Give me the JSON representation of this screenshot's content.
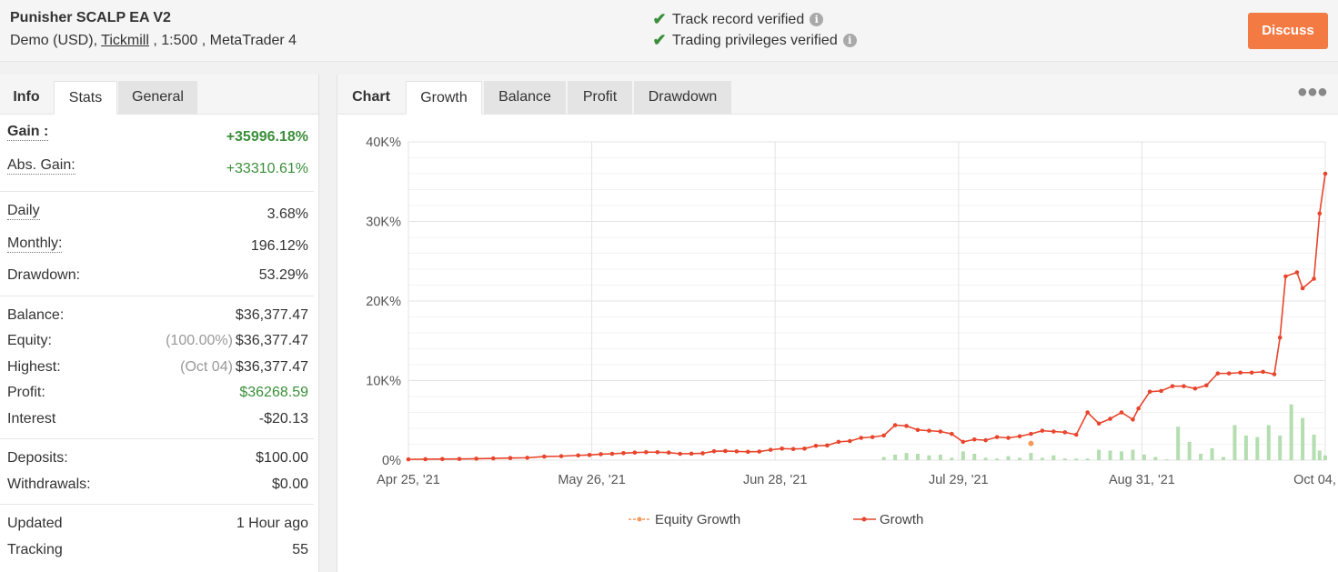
{
  "header": {
    "system_name": "Punisher SCALP EA V2",
    "account_type": "Demo (USD),",
    "broker": "Tickmill",
    "leverage_platform": ", 1:500 , MetaTrader 4",
    "track_record": "Track record verified",
    "trading_privileges": "Trading privileges verified",
    "discuss_label": "Discuss"
  },
  "left_tabs": [
    "Info",
    "Stats",
    "General"
  ],
  "stats": {
    "gain": {
      "label": "Gain :",
      "value": "+35996.18%"
    },
    "abs_gain": {
      "label": "Abs. Gain:",
      "value": "+33310.61%"
    },
    "daily": {
      "label": "Daily",
      "value": "3.68%"
    },
    "monthly": {
      "label": "Monthly:",
      "value": "196.12%"
    },
    "drawdown": {
      "label": "Drawdown:",
      "value": "53.29%"
    },
    "balance": {
      "label": "Balance:",
      "value": "$36,377.47"
    },
    "equity": {
      "label": "Equity:",
      "prefix": "(100.00%)",
      "value": "$36,377.47"
    },
    "highest": {
      "label": "Highest:",
      "prefix": "(Oct 04)",
      "value": "$36,377.47"
    },
    "profit": {
      "label": "Profit:",
      "value": "$36268.59"
    },
    "interest": {
      "label": "Interest",
      "value": "-$20.13"
    },
    "deposits": {
      "label": "Deposits:",
      "value": "$100.00"
    },
    "withdrawals": {
      "label": "Withdrawals:",
      "value": "$0.00"
    },
    "updated": {
      "label": "Updated",
      "value": "1 Hour ago"
    },
    "tracking": {
      "label": "Tracking",
      "value": "55"
    }
  },
  "chart_tabs": [
    "Chart",
    "Growth",
    "Balance",
    "Profit",
    "Drawdown"
  ],
  "menu_icon": "more-dots-icon",
  "colors": {
    "growth": "#e8452c",
    "equity": "#f39a5c",
    "bars": "#b4ddb0",
    "accent": "#f47a44",
    "green": "#3a8f3a"
  },
  "chart_data": {
    "type": "line",
    "ylim": [
      0,
      40000
    ],
    "yticks": [
      "0%",
      "10K%",
      "20K%",
      "30K%",
      "40K%"
    ],
    "xticks": [
      "Apr 25, '21",
      "May 26, '21",
      "Jun 28, '21",
      "Jul 29, '21",
      "Aug 31, '21",
      "Oct 04, '21"
    ],
    "x_range_days": [
      0,
      162
    ],
    "legend": [
      "Equity Growth",
      "Growth"
    ],
    "series": [
      {
        "name": "Growth",
        "x": [
          0,
          3,
          6,
          9,
          12,
          15,
          18,
          21,
          24,
          27,
          30,
          32,
          34,
          36,
          38,
          40,
          42,
          44,
          46,
          48,
          50,
          52,
          54,
          56,
          58,
          60,
          62,
          64,
          66,
          68,
          70,
          72,
          74,
          76,
          78,
          80,
          82,
          84,
          86,
          88,
          90,
          92,
          94,
          96,
          98,
          100,
          102,
          104,
          106,
          108,
          110,
          112,
          114,
          116,
          118,
          120,
          122,
          124,
          126,
          128,
          129,
          131,
          133,
          135,
          137,
          139,
          141,
          143,
          145,
          147,
          149,
          151,
          153,
          154,
          155,
          157,
          158,
          160,
          161,
          162
        ],
        "values": [
          100,
          120,
          140,
          150,
          180,
          220,
          260,
          300,
          450,
          500,
          600,
          650,
          750,
          800,
          880,
          950,
          1000,
          1000,
          950,
          800,
          820,
          860,
          1120,
          1150,
          1100,
          1050,
          1080,
          1300,
          1450,
          1400,
          1450,
          1800,
          1850,
          2300,
          2400,
          2800,
          2900,
          3100,
          4400,
          4300,
          3800,
          3700,
          3600,
          3300,
          2300,
          2600,
          2500,
          2900,
          2800,
          3000,
          3300,
          3700,
          3600,
          3500,
          3200,
          6000,
          4600,
          5200,
          6000,
          5100,
          6500,
          8600,
          8700,
          9300,
          9300,
          9000,
          9400,
          10900,
          10900,
          11000,
          11000,
          11100,
          10800,
          15400,
          23100,
          23600,
          21600,
          22800,
          31000,
          36000
        ]
      },
      {
        "name": "Equity Growth",
        "x": [
          110
        ],
        "values": [
          2100
        ]
      }
    ],
    "bars": {
      "x": [
        84,
        86,
        88,
        90,
        92,
        94,
        96,
        98,
        100,
        102,
        104,
        106,
        108,
        110,
        112,
        114,
        116,
        118,
        120,
        122,
        124,
        126,
        128,
        130,
        132,
        134,
        136,
        138,
        140,
        142,
        144,
        146,
        148,
        150,
        152,
        154,
        156,
        158,
        160,
        161,
        162
      ],
      "values": [
        400,
        700,
        900,
        800,
        600,
        700,
        300,
        1100,
        800,
        300,
        200,
        500,
        300,
        900,
        300,
        600,
        200,
        200,
        200,
        1300,
        1200,
        1100,
        1300,
        700,
        400,
        100,
        4200,
        2300,
        800,
        1500,
        400,
        4400,
        3100,
        2900,
        4400,
        3100,
        7000,
        5300,
        3200,
        1200,
        600
      ]
    }
  }
}
